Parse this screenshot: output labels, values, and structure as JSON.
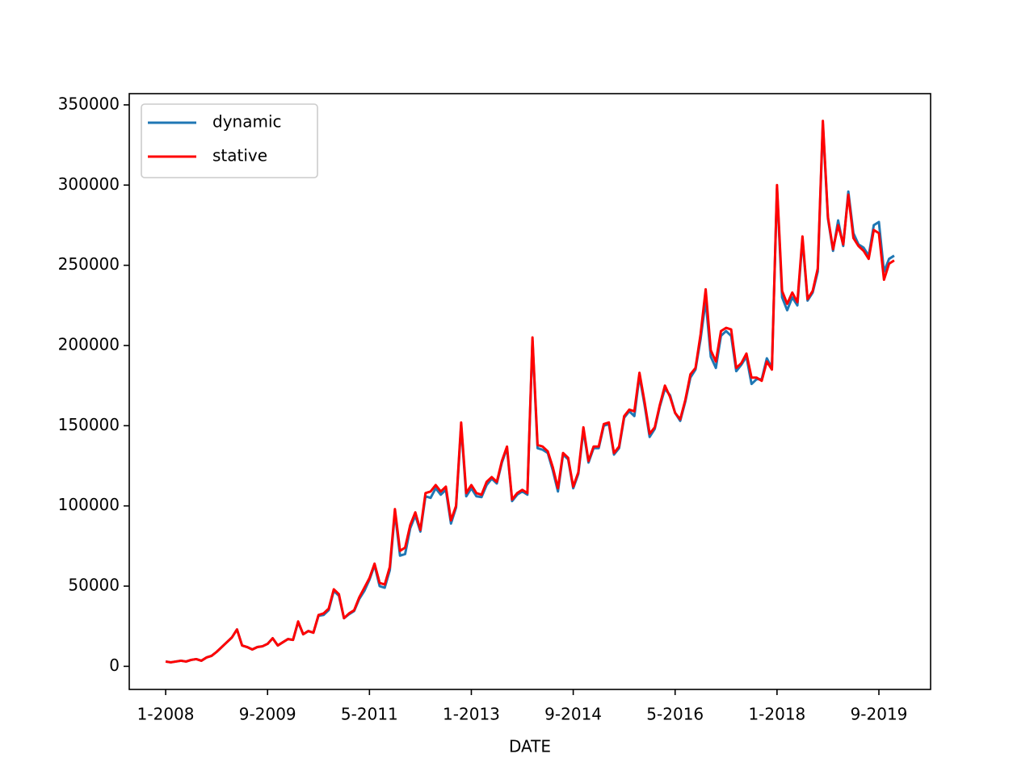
{
  "chart_data": {
    "type": "line",
    "xlabel": "DATE",
    "categories": [
      "1-2008",
      "2-2008",
      "3-2008",
      "4-2008",
      "5-2008",
      "6-2008",
      "7-2008",
      "8-2008",
      "9-2008",
      "10-2008",
      "11-2008",
      "12-2008",
      "1-2009",
      "2-2009",
      "3-2009",
      "4-2009",
      "5-2009",
      "6-2009",
      "7-2009",
      "8-2009",
      "9-2009",
      "10-2009",
      "11-2009",
      "12-2009",
      "1-2010",
      "2-2010",
      "3-2010",
      "4-2010",
      "5-2010",
      "6-2010",
      "7-2010",
      "8-2010",
      "9-2010",
      "10-2010",
      "11-2010",
      "12-2010",
      "1-2011",
      "2-2011",
      "3-2011",
      "4-2011",
      "5-2011",
      "6-2011",
      "7-2011",
      "8-2011",
      "9-2011",
      "10-2011",
      "11-2011",
      "12-2011",
      "1-2012",
      "2-2012",
      "3-2012",
      "4-2012",
      "5-2012",
      "6-2012",
      "7-2012",
      "8-2012",
      "9-2012",
      "10-2012",
      "11-2012",
      "12-2012",
      "1-2013",
      "2-2013",
      "3-2013",
      "4-2013",
      "5-2013",
      "6-2013",
      "7-2013",
      "8-2013",
      "9-2013",
      "10-2013",
      "11-2013",
      "12-2013",
      "1-2014",
      "2-2014",
      "3-2014",
      "4-2014",
      "5-2014",
      "6-2014",
      "7-2014",
      "8-2014",
      "9-2014",
      "10-2014",
      "11-2014",
      "12-2014",
      "1-2015",
      "2-2015",
      "3-2015",
      "4-2015",
      "5-2015",
      "6-2015",
      "7-2015",
      "8-2015",
      "9-2015",
      "10-2015",
      "11-2015",
      "12-2015",
      "1-2016",
      "2-2016",
      "3-2016",
      "4-2016",
      "5-2016",
      "6-2016",
      "7-2016",
      "8-2016",
      "9-2016",
      "10-2016",
      "11-2016",
      "12-2016",
      "1-2017",
      "2-2017",
      "3-2017",
      "4-2017",
      "5-2017",
      "6-2017",
      "7-2017",
      "8-2017",
      "9-2017",
      "10-2017",
      "11-2017",
      "12-2017",
      "1-2018",
      "2-2018",
      "3-2018",
      "4-2018",
      "5-2018",
      "6-2018",
      "7-2018",
      "8-2018",
      "9-2018",
      "10-2018",
      "11-2018",
      "12-2018",
      "1-2019",
      "2-2019",
      "3-2019",
      "4-2019",
      "5-2019",
      "6-2019",
      "7-2019",
      "8-2019",
      "9-2019",
      "10-2019",
      "11-2019",
      "12-2019"
    ],
    "series": [
      {
        "name": "dynamic",
        "color": "#1f77b4",
        "values": [
          3000,
          2500,
          3000,
          3500,
          3000,
          4000,
          4500,
          3500,
          5500,
          6500,
          9000,
          12000,
          15000,
          18000,
          23000,
          13000,
          12000,
          10500,
          12000,
          12500,
          14000,
          17500,
          13000,
          15000,
          17000,
          16500,
          27500,
          20000,
          22000,
          21000,
          31500,
          32000,
          35000,
          47000,
          44000,
          30000,
          32500,
          34500,
          42000,
          47000,
          54000,
          63000,
          50000,
          49000,
          60000,
          96000,
          69000,
          70000,
          86000,
          94000,
          84000,
          106000,
          105000,
          111000,
          107000,
          110000,
          89000,
          99000,
          150000,
          106000,
          111000,
          106000,
          105500,
          113000,
          117000,
          114000,
          127000,
          136000,
          103000,
          107000,
          109000,
          107000,
          203000,
          136000,
          135000,
          133000,
          122000,
          109000,
          132000,
          129000,
          111000,
          120000,
          147000,
          127000,
          136000,
          136000,
          150000,
          151000,
          132000,
          136000,
          155000,
          159000,
          156000,
          181000,
          163000,
          143000,
          148000,
          162000,
          173000,
          169000,
          158000,
          153000,
          165000,
          180000,
          185000,
          204000,
          228000,
          193000,
          186000,
          206000,
          209000,
          206000,
          184000,
          188000,
          193000,
          176000,
          179000,
          179000,
          192000,
          186000,
          298000,
          230000,
          222000,
          230000,
          225000,
          266000,
          228000,
          233000,
          246000,
          338000,
          279000,
          259000,
          278000,
          262000,
          296000,
          270000,
          263000,
          261000,
          256000,
          275000,
          277000,
          246000,
          254000,
          256000
        ]
      },
      {
        "name": "stative",
        "color": "#ff0000",
        "values": [
          3000,
          2500,
          3000,
          3500,
          3000,
          4000,
          4500,
          3500,
          5500,
          6500,
          9000,
          12000,
          15000,
          18000,
          23000,
          13000,
          12000,
          10500,
          12000,
          12500,
          14000,
          17500,
          13000,
          15000,
          17000,
          16500,
          28000,
          20000,
          22000,
          21000,
          32000,
          33000,
          36000,
          48000,
          45000,
          30000,
          33000,
          35000,
          43000,
          49000,
          55000,
          64000,
          52000,
          51000,
          62000,
          98000,
          72000,
          74000,
          88000,
          96000,
          85000,
          108000,
          109000,
          113000,
          109000,
          112000,
          91000,
          100000,
          152000,
          108000,
          113000,
          108000,
          107000,
          115000,
          118000,
          115000,
          128000,
          137000,
          104000,
          108000,
          110000,
          108000,
          205000,
          138000,
          137000,
          134000,
          124000,
          111000,
          133000,
          130000,
          112000,
          121000,
          149000,
          128000,
          137000,
          137000,
          151000,
          152000,
          133000,
          137000,
          156000,
          160000,
          159000,
          183000,
          165000,
          145000,
          149000,
          163000,
          175000,
          168000,
          158000,
          154000,
          166000,
          182000,
          186000,
          207000,
          235000,
          197000,
          190000,
          209000,
          211000,
          210000,
          186000,
          189000,
          195000,
          180000,
          180000,
          178000,
          190000,
          185000,
          300000,
          234000,
          226000,
          233000,
          227000,
          268000,
          229000,
          234000,
          248000,
          340000,
          280000,
          260000,
          275000,
          263000,
          294000,
          267000,
          262000,
          259000,
          254000,
          272000,
          270000,
          241000,
          251000,
          253000
        ]
      }
    ],
    "xlim": [
      -7.15,
      150.15
    ],
    "xticks": [
      {
        "value": 0,
        "label": "1-2008"
      },
      {
        "value": 20,
        "label": "9-2009"
      },
      {
        "value": 40,
        "label": "5-2011"
      },
      {
        "value": 60,
        "label": "1-2013"
      },
      {
        "value": 80,
        "label": "9-2014"
      },
      {
        "value": 100,
        "label": "5-2016"
      },
      {
        "value": 120,
        "label": "1-2018"
      },
      {
        "value": 140,
        "label": "9-2019"
      }
    ],
    "ylim": [
      -14400,
      357000
    ],
    "yticks": [
      0,
      50000,
      100000,
      150000,
      200000,
      250000,
      300000,
      350000
    ],
    "legend": "upper left"
  }
}
